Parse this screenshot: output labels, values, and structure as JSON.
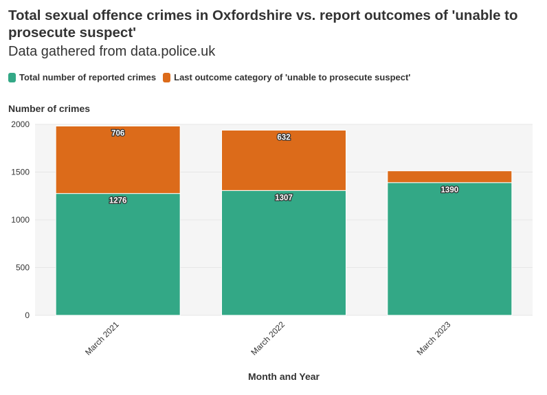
{
  "chart_data": {
    "type": "bar",
    "stacked": true,
    "title": "Total sexual offence crimes in Oxfordshire vs. report outcomes of 'unable to prosecute suspect'",
    "subtitle": "Data gathered from data.police.uk",
    "xlabel": "Month and Year",
    "ylabel": "Number of crimes",
    "categories": [
      "March 2021",
      "March 2022",
      "March 2023"
    ],
    "series": [
      {
        "name": "Total number of reported crimes",
        "values": [
          1276,
          1307,
          1390
        ],
        "color": "#33a886"
      },
      {
        "name": "Last outcome category of 'unable to prosecute suspect'",
        "values": [
          706,
          632,
          123
        ],
        "color": "#dc6b1a"
      }
    ],
    "data_labels": [
      [
        "1276",
        "1307",
        "1390"
      ],
      [
        "706",
        "632",
        ""
      ]
    ],
    "ylim": [
      0,
      2000
    ],
    "yticks": [
      0,
      500,
      1000,
      1500,
      2000
    ],
    "grid": true,
    "legend_position": "top-left"
  }
}
